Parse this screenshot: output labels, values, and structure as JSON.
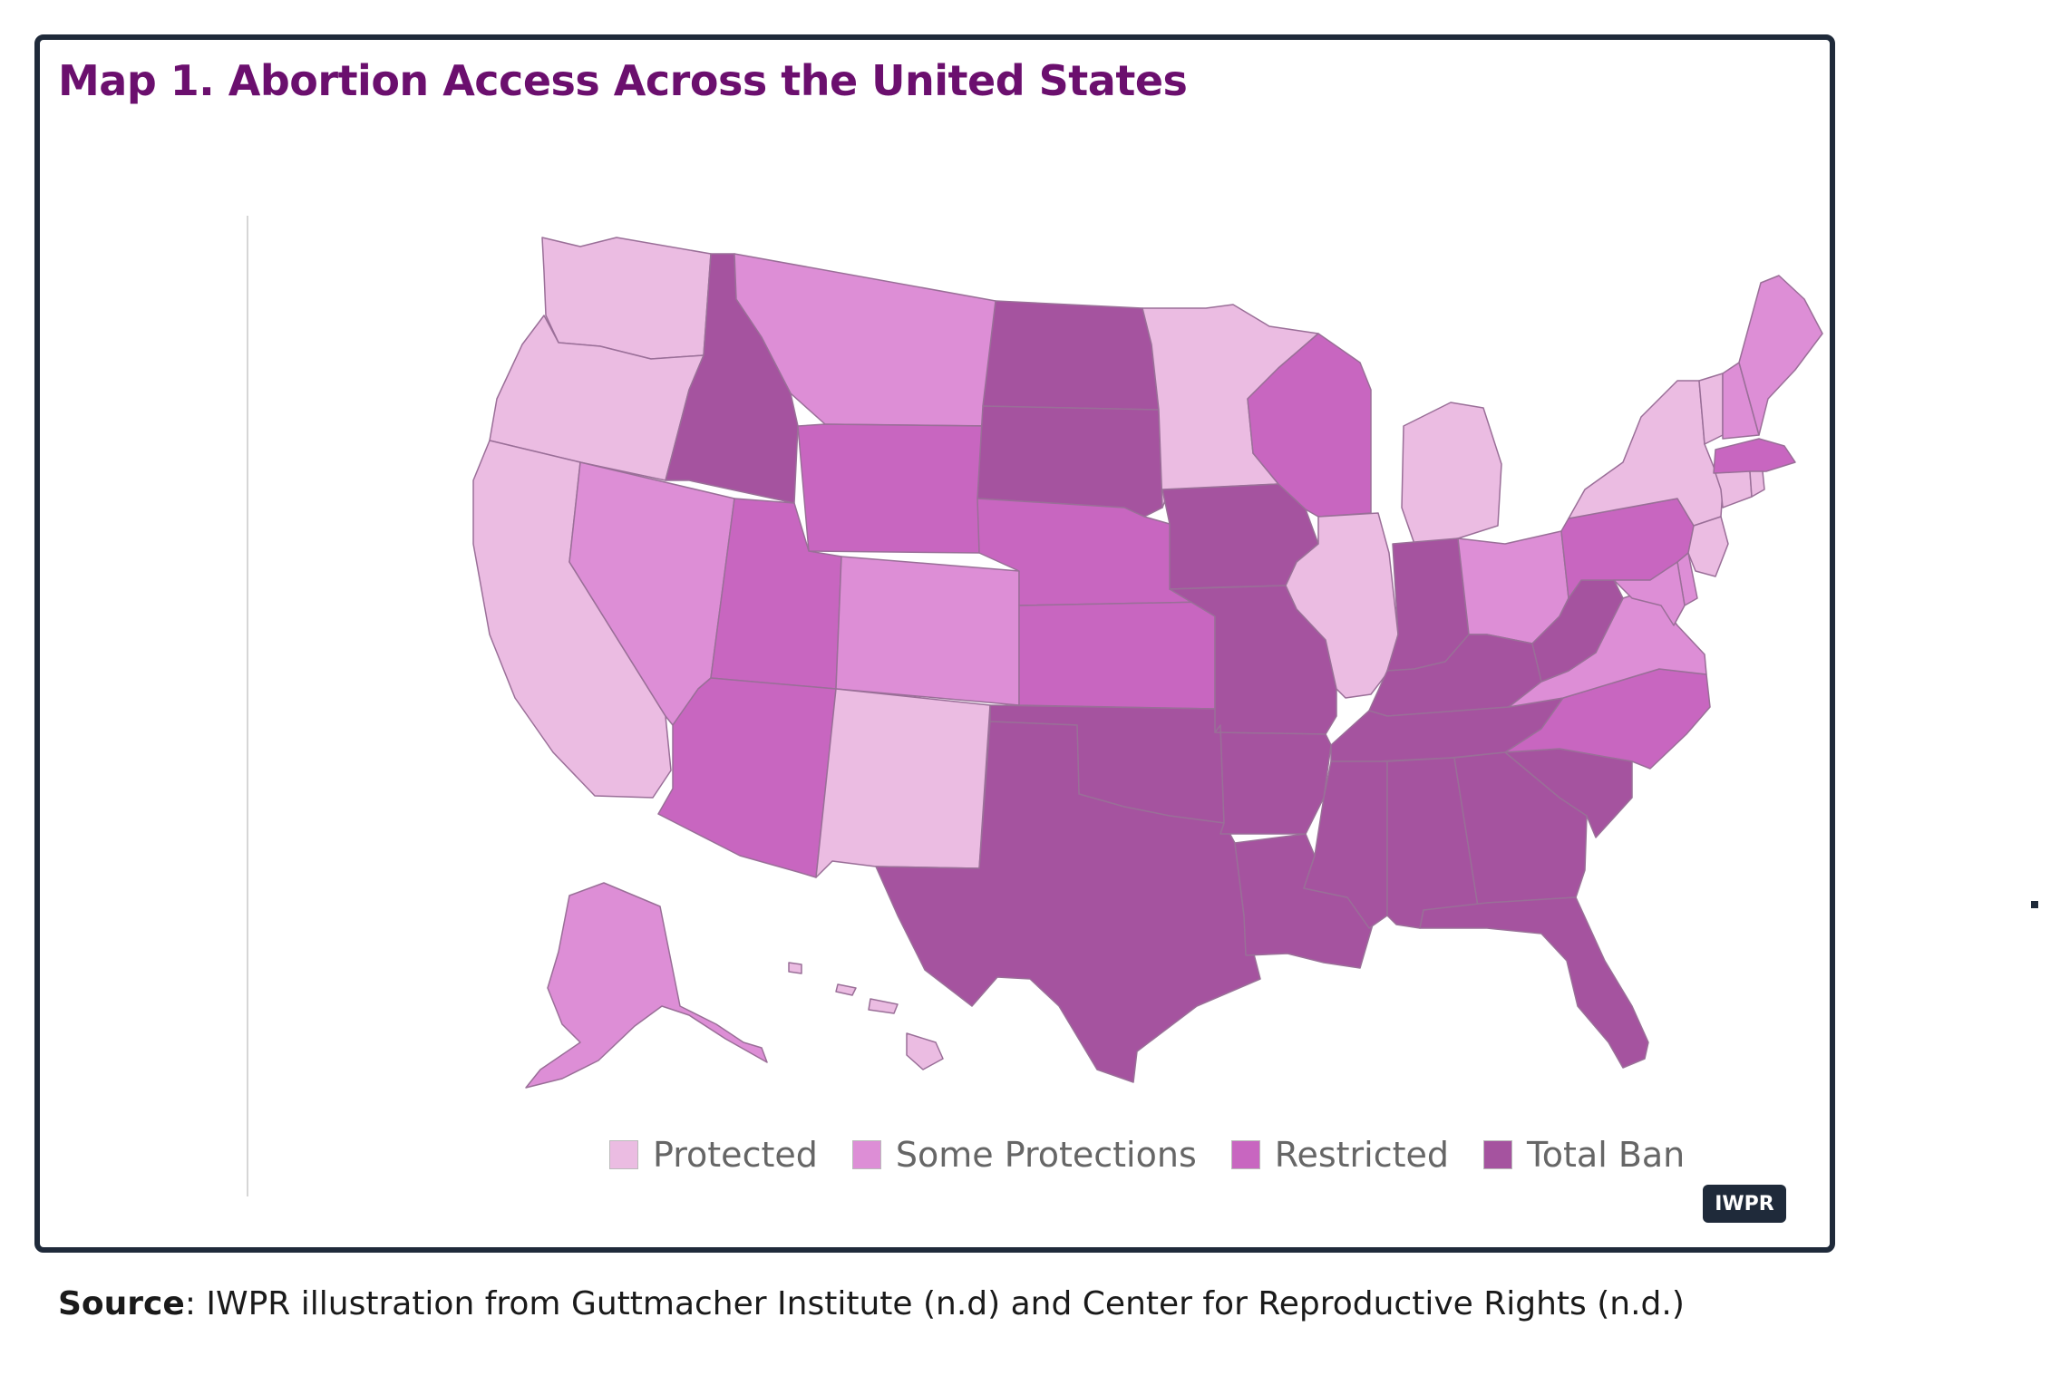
{
  "title": "Map 1. Abortion Access Across the United States",
  "colors": {
    "Protected": "#ebbce2",
    "Some Protections": "#dd8ed6",
    "Restricted": "#c866c0",
    "Total Ban": "#a5539f",
    "border": "#9a6f98",
    "title": "#6b0f6e",
    "frame": "#1f2a3a"
  },
  "legend": [
    {
      "category": "Protected",
      "label": "Protected"
    },
    {
      "category": "Some Protections",
      "label": "Some Protections"
    },
    {
      "category": "Restricted",
      "label": "Restricted"
    },
    {
      "category": "Total Ban",
      "label": "Total Ban"
    }
  ],
  "states": {
    "WA": "Protected",
    "OR": "Protected",
    "CA": "Protected",
    "NM": "Protected",
    "MN": "Protected",
    "IL": "Protected",
    "MI": "Protected",
    "NY": "Protected",
    "VT": "Protected",
    "NJ": "Protected",
    "CT": "Protected",
    "RI": "Protected",
    "HI": "Protected",
    "MT": "Some Protections",
    "NV": "Some Protections",
    "CO": "Some Protections",
    "AK": "Some Protections",
    "OH": "Some Protections",
    "VA": "Some Protections",
    "ME": "Some Protections",
    "NH": "Some Protections",
    "MD": "Some Protections",
    "DE": "Some Protections",
    "WY": "Restricted",
    "UT": "Restricted",
    "AZ": "Restricted",
    "NE": "Restricted",
    "KS": "Restricted",
    "WI": "Restricted",
    "PA": "Restricted",
    "NC": "Restricted",
    "MA": "Restricted",
    "ID": "Total Ban",
    "ND": "Total Ban",
    "SD": "Total Ban",
    "OK": "Total Ban",
    "TX": "Total Ban",
    "IA": "Total Ban",
    "MO": "Total Ban",
    "AR": "Total Ban",
    "LA": "Total Ban",
    "IN": "Total Ban",
    "KY": "Total Ban",
    "TN": "Total Ban",
    "MS": "Total Ban",
    "AL": "Total Ban",
    "GA": "Total Ban",
    "FL": "Total Ban",
    "SC": "Total Ban",
    "WV": "Total Ban"
  },
  "brand_badge": "IWPR",
  "source": {
    "label": "Source",
    "text": ": IWPR illustration from Guttmacher Institute (n.d) and Center for Reproductive Rights (n.d.)"
  }
}
